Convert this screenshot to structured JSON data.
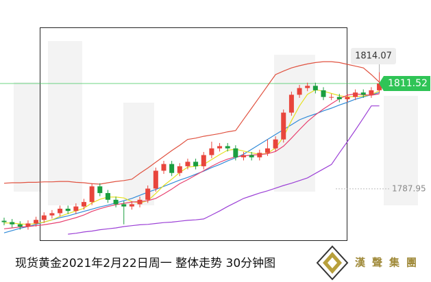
{
  "chart_data": {
    "type": "candlestick",
    "title": "现货黄金2021年2月22日周一 整体走势  30分钟图",
    "logo": "漢聲集團",
    "ylim": [
      1767.1,
      1830.2
    ],
    "price_marker": 1787.95,
    "up_color": "#e8453c",
    "down_color": "#1a9e3f",
    "open": [
      1780.8,
      1780.5,
      1780.0,
      1779.5,
      1780.2,
      1781.0,
      1782.0,
      1782.5,
      1783.5,
      1783.0,
      1784.0,
      1785.0,
      1788.5,
      1787.0,
      1785.5,
      1784.5,
      1784.0,
      1784.5,
      1785.5,
      1788.0,
      1792.0,
      1793.5,
      1791.5,
      1793.0,
      1794.0,
      1793.0,
      1795.5,
      1797.0,
      1797.5,
      1797.0,
      1795.0,
      1795.5,
      1795.0,
      1796.0,
      1797.0,
      1799.0,
      1805.0,
      1809.0,
      1810.5,
      1811.0,
      1810.0,
      1808.5,
      1808.5,
      1808.0,
      1808.5,
      1809.5,
      1809.0,
      1810.0
    ],
    "high": [
      1781.5,
      1781.2,
      1780.7,
      1780.9,
      1781.7,
      1782.7,
      1783.2,
      1784.2,
      1784.2,
      1784.7,
      1785.7,
      1789.2,
      1789.2,
      1787.7,
      1786.2,
      1785.2,
      1785.2,
      1786.2,
      1788.7,
      1792.7,
      1794.2,
      1794.2,
      1793.7,
      1794.7,
      1794.7,
      1796.2,
      1798.5,
      1798.2,
      1798.2,
      1797.7,
      1796.2,
      1796.2,
      1796.7,
      1799.0,
      1799.7,
      1805.7,
      1809.7,
      1811.2,
      1811.7,
      1811.7,
      1810.7,
      1809.2,
      1809.2,
      1809.2,
      1810.2,
      1810.2,
      1810.7,
      1814.07
    ],
    "low": [
      1779.8,
      1779.3,
      1778.8,
      1778.8,
      1779.5,
      1780.3,
      1781.3,
      1781.8,
      1782.3,
      1782.3,
      1783.3,
      1784.3,
      1786.3,
      1784.8,
      1783.8,
      1780.0,
      1783.3,
      1783.8,
      1784.8,
      1787.3,
      1791.3,
      1790.8,
      1790.8,
      1792.3,
      1792.3,
      1792.3,
      1794.8,
      1796.3,
      1796.3,
      1794.3,
      1794.3,
      1794.3,
      1794.3,
      1795.3,
      1796.3,
      1798.3,
      1804.3,
      1808.3,
      1809.8,
      1809.3,
      1807.8,
      1807.8,
      1807.3,
      1807.3,
      1807.8,
      1808.3,
      1808.3,
      1809.3
    ],
    "close": [
      1780.5,
      1780.0,
      1779.5,
      1780.2,
      1781.0,
      1782.0,
      1782.5,
      1783.5,
      1783.0,
      1784.0,
      1785.0,
      1788.5,
      1787.0,
      1785.5,
      1784.5,
      1784.0,
      1784.5,
      1785.5,
      1788.0,
      1792.0,
      1793.5,
      1791.5,
      1793.0,
      1794.0,
      1793.0,
      1795.5,
      1797.0,
      1797.5,
      1797.0,
      1795.0,
      1795.5,
      1795.0,
      1796.0,
      1797.0,
      1799.0,
      1805.0,
      1809.0,
      1810.5,
      1811.0,
      1810.0,
      1808.5,
      1808.5,
      1808.0,
      1808.5,
      1809.5,
      1809.0,
      1810.0,
      1811.52
    ],
    "series": [
      {
        "color": "#e0513f",
        "values": [
          1789.2,
          1789.3,
          1789.3,
          1789.4,
          1789.4,
          1789.5,
          1789.5,
          1789.6,
          1789.6,
          1789.4,
          1789.3,
          1789.1,
          1789.0,
          1789.3,
          1789.6,
          1789.8,
          1790.1,
          1791.4,
          1792.6,
          1793.9,
          1795.2,
          1796.5,
          1797.7,
          1799.0,
          1799.3,
          1799.7,
          1800.0,
          1800.3,
          1800.7,
          1801.0,
          1803.5,
          1806.0,
          1808.5,
          1811.0,
          1813.5,
          1814.3,
          1815.0,
          1815.5,
          1815.9,
          1816.2,
          1816.4,
          1816.4,
          1816.2,
          1815.8,
          1815.4,
          1815.0,
          1813.5,
          1811.8
        ]
      },
      {
        "color": "#9b3fd6",
        "values": [
          null,
          null,
          null,
          null,
          null,
          null,
          null,
          null,
          1777.8,
          1778.0,
          1778.3,
          1778.5,
          1778.8,
          1779.0,
          1779.2,
          1779.5,
          1779.7,
          1779.9,
          1780.0,
          1780.2,
          1780.4,
          1780.5,
          1780.7,
          1780.9,
          1781.0,
          1781.2,
          1782.1,
          1783.0,
          1784.0,
          1784.9,
          1785.8,
          1786.4,
          1787.0,
          1787.5,
          1788.1,
          1788.7,
          1789.2,
          1789.8,
          1790.4,
          1791.4,
          1792.4,
          1793.4,
          1796.0,
          1798.5,
          1801.1,
          1803.8,
          1806.5,
          1806.5
        ]
      },
      {
        "color": "#2f8ad8",
        "values": [
          1778.1,
          1778.6,
          1779.1,
          1779.5,
          1780.0,
          1780.5,
          1781.0,
          1781.5,
          1781.9,
          1782.4,
          1782.9,
          1783.4,
          1783.9,
          1784.3,
          1784.8,
          1785.3,
          1785.8,
          1786.5,
          1787.2,
          1787.8,
          1788.5,
          1789.2,
          1789.9,
          1790.5,
          1791.2,
          1791.9,
          1792.7,
          1793.4,
          1794.2,
          1794.9,
          1795.7,
          1796.8,
          1797.9,
          1799.0,
          1800.1,
          1801.2,
          1802.3,
          1803.4,
          1804.1,
          1804.7,
          1805.4,
          1806.0,
          1806.7,
          1807.3,
          1808.0,
          1808.5,
          1809.0,
          1809.5
        ]
      },
      {
        "color": "#e5e020",
        "values": [
          1780.3,
          1780.3,
          1780.1,
          1780.0,
          1780.2,
          1780.5,
          1781.0,
          1781.8,
          1782.4,
          1783.0,
          1783.6,
          1784.8,
          1785.6,
          1786.1,
          1786.1,
          1785.9,
          1785.1,
          1784.8,
          1785.3,
          1786.9,
          1788.7,
          1790.1,
          1791.6,
          1792.8,
          1793.0,
          1793.4,
          1794.5,
          1795.6,
          1796.6,
          1796.8,
          1796.4,
          1796.0,
          1795.7,
          1795.9,
          1797.1,
          1799.6,
          1803.2,
          1806.5,
          1809.1,
          1810.1,
          1809.8,
          1809.3,
          1808.8,
          1808.5,
          1808.6,
          1808.7,
          1809.0,
          1809.9
        ]
      },
      {
        "color": "#e8406f",
        "values": [
          1779.0,
          1779.2,
          1779.4,
          1779.5,
          1779.7,
          1779.9,
          1780.2,
          1780.5,
          1781.0,
          1781.5,
          1782.1,
          1782.9,
          1783.5,
          1784.0,
          1784.4,
          1784.7,
          1785.0,
          1785.1,
          1785.3,
          1785.8,
          1786.8,
          1787.9,
          1789.1,
          1790.0,
          1791.0,
          1792.0,
          1793.0,
          1793.9,
          1794.6,
          1795.1,
          1795.3,
          1795.5,
          1795.6,
          1795.8,
          1796.3,
          1797.5,
          1799.3,
          1801.2,
          1803.0,
          1804.5,
          1805.8,
          1807.0,
          1808.1,
          1808.9,
          1809.2,
          1809.0,
          1808.9,
          1809.2
        ]
      }
    ]
  }
}
